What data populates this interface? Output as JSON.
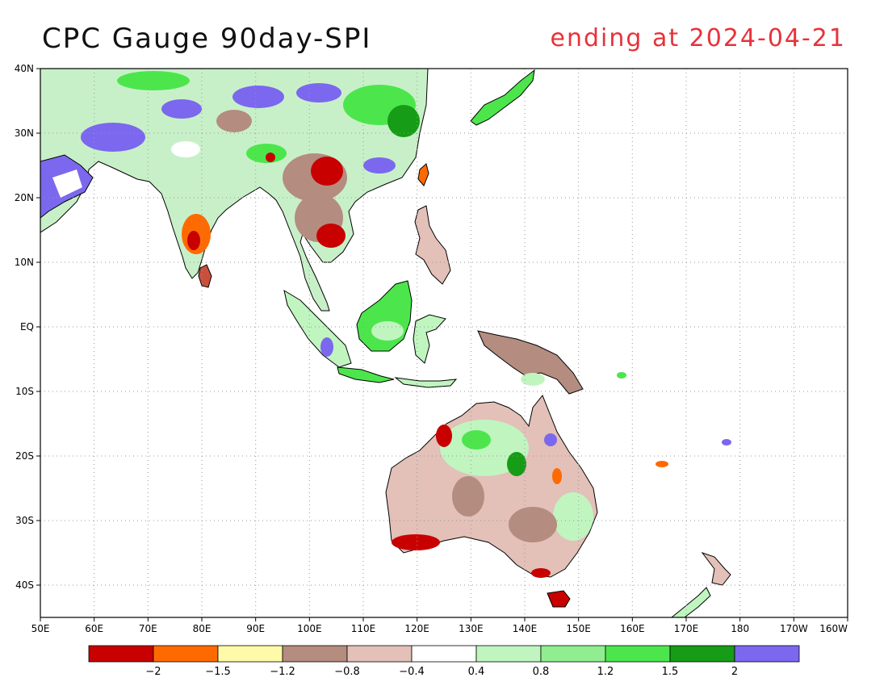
{
  "title": "CPC Gauge 90day-SPI",
  "subtitle": "ending at 2024-04-21",
  "axes": {
    "lon_labels": [
      "50E",
      "60E",
      "70E",
      "80E",
      "90E",
      "100E",
      "110E",
      "120E",
      "130E",
      "140E",
      "150E",
      "160E",
      "170E",
      "180",
      "170W",
      "160W"
    ],
    "lat_labels": [
      "40N",
      "30N",
      "20N",
      "10N",
      "EQ",
      "10S",
      "20S",
      "30S",
      "40S"
    ],
    "lon_range": [
      50,
      200
    ],
    "lat_range": [
      -45,
      40
    ],
    "grid": true
  },
  "colorbar": {
    "colors": [
      "#c80000",
      "#ff6a00",
      "#fffaa8",
      "#b48c80",
      "#e3c0b8",
      "#ffffff",
      "#c0f5c0",
      "#90ee90",
      "#4ce64c",
      "#169c16",
      "#7b68ee"
    ],
    "labels": [
      "-2",
      "-1.5",
      "-1.2",
      "-0.8",
      "-0.4",
      "0.4",
      "0.8",
      "1.2",
      "1.5",
      "2"
    ]
  }
}
